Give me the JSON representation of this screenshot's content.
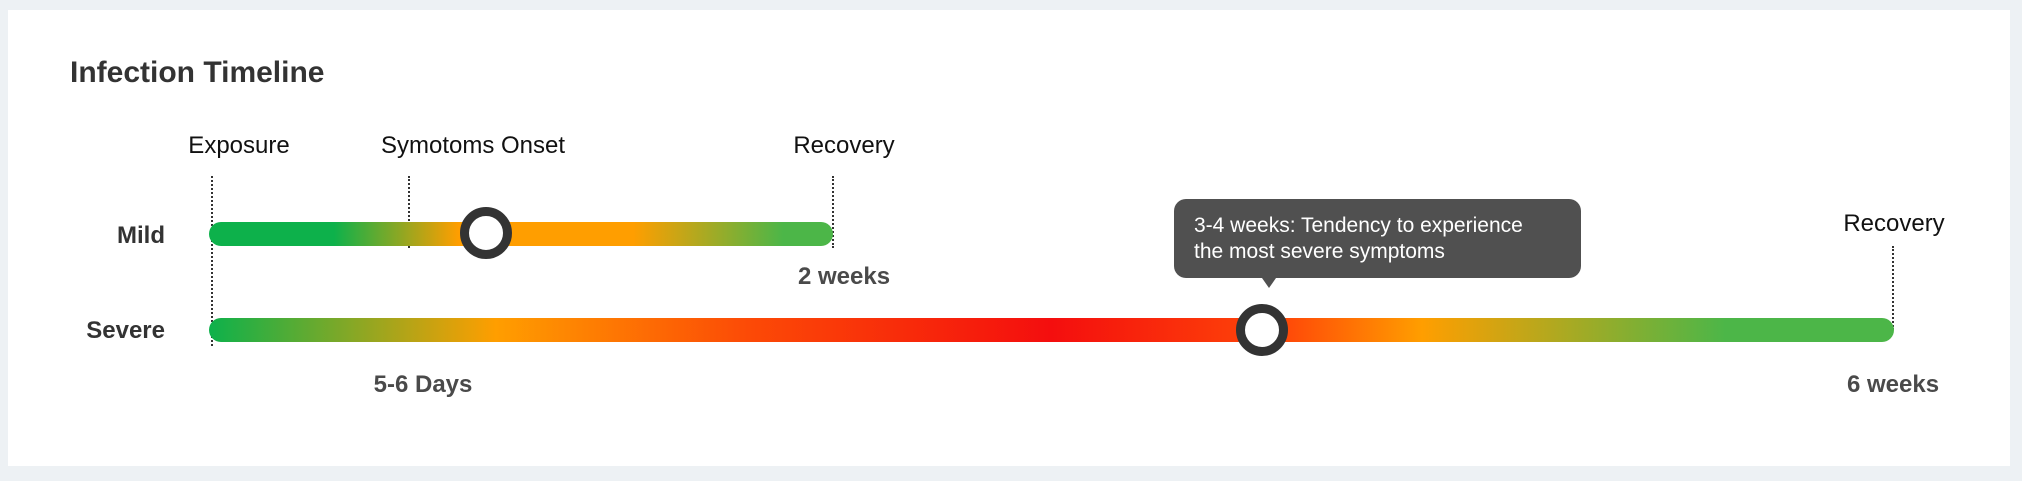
{
  "title": "Infection Timeline",
  "milestones": {
    "exposure": "Exposure",
    "symptoms_onset": "Symotoms Onset",
    "mild_recovery": "Recovery",
    "severe_recovery": "Recovery"
  },
  "rows": {
    "mild": {
      "label": "Mild",
      "duration": "2 weeks"
    },
    "severe": {
      "label": "Severe",
      "duration": "6 weeks"
    }
  },
  "onset_duration": "5-6 Days",
  "tooltip": {
    "line1": "3-4 weeks: Tendency to experience",
    "line2": "the most severe symptoms"
  },
  "colors": {
    "healthy_green": "#0db14b",
    "recovery_green": "#4cb648",
    "moderate_orange": "#ff9e00",
    "severe_red": "#f40e0e",
    "knob_ring": "#333333",
    "tooltip_bg": "#505050"
  }
}
